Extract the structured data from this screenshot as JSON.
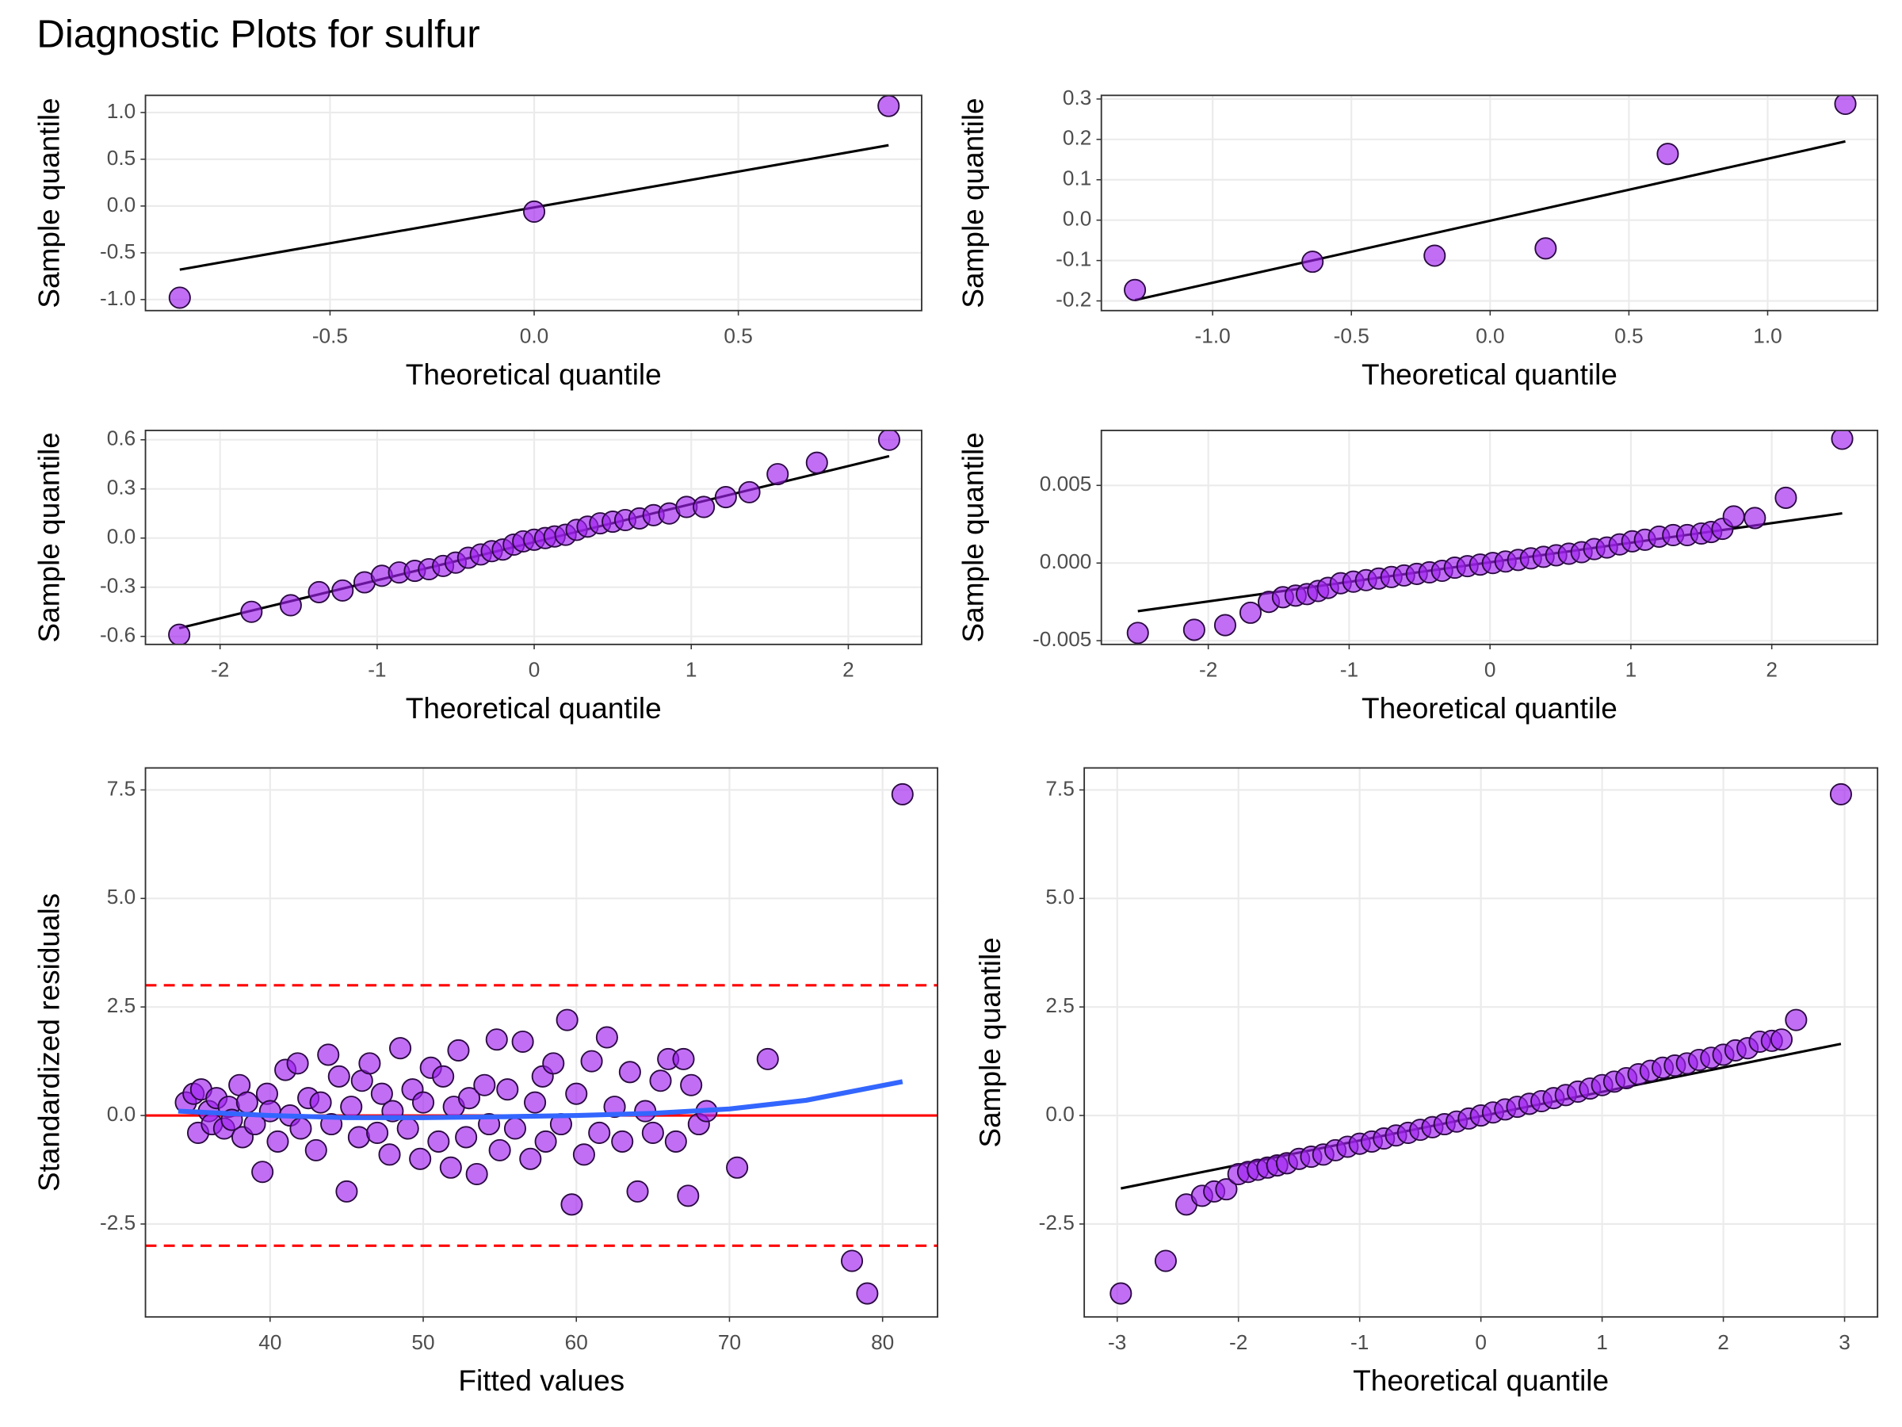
{
  "title": "Diagnostic Plots for sulfur",
  "chart_data": [
    {
      "type": "scatter",
      "x_label": "Theoretical quantile",
      "y_label": "Sample quantile",
      "xlim": [
        -0.952,
        0.949
      ],
      "ylim": [
        -1.118,
        1.183
      ],
      "xticks": [
        -0.5,
        {
          "value": 0,
          "label": "0.0"
        },
        0.5
      ],
      "yticks": [
        {
          "value": -1,
          "label": "-1.0"
        },
        -0.5,
        {
          "value": 0,
          "label": "0.0"
        },
        0.5,
        {
          "value": 1,
          "label": "1.0"
        }
      ],
      "grid": true,
      "color": "#a020f0",
      "x": [
        -0.868,
        0,
        0.868
      ],
      "y": [
        -0.98,
        -0.06,
        1.07
      ],
      "line": {
        "color": "#000000",
        "x": [
          -0.868,
          0.868
        ],
        "y": [
          -0.68,
          0.65
        ]
      }
    },
    {
      "type": "scatter",
      "x_label": "Theoretical quantile",
      "y_label": "Sample quantile",
      "xlim": [
        -1.401,
        1.396
      ],
      "ylim": [
        -0.224,
        0.309
      ],
      "xticks": [
        {
          "value": -1,
          "label": "-1.0"
        },
        -0.5,
        {
          "value": 0,
          "label": "0.0"
        },
        0.5,
        {
          "value": 1,
          "label": "1.0"
        }
      ],
      "yticks": [
        -0.2,
        -0.1,
        {
          "value": 0,
          "label": "0.0"
        },
        0.1,
        0.2,
        0.3
      ],
      "grid": true,
      "color": "#a020f0",
      "x": [
        -1.28,
        -0.64,
        -0.2,
        0.2,
        0.64,
        1.28
      ],
      "y": [
        -0.173,
        -0.103,
        -0.088,
        -0.07,
        0.164,
        0.288
      ],
      "line": {
        "color": "#000000",
        "x": [
          -1.28,
          1.28
        ],
        "y": [
          -0.198,
          0.195
        ]
      }
    },
    {
      "type": "scatter",
      "x_label": "Theoretical quantile",
      "y_label": "Sample quantile",
      "xlim": [
        -2.475,
        2.467
      ],
      "ylim": [
        -0.649,
        0.657
      ],
      "xticks": [
        -2,
        -1,
        0,
        1,
        2
      ],
      "yticks": [
        -0.6,
        -0.3,
        {
          "value": 0,
          "label": "0.0"
        },
        0.3,
        0.6
      ],
      "grid": true,
      "color": "#a020f0",
      "x": [
        -2.26,
        -1.8,
        -1.55,
        -1.37,
        -1.22,
        -1.08,
        -0.97,
        -0.86,
        -0.76,
        -0.67,
        -0.58,
        -0.5,
        -0.42,
        -0.34,
        -0.27,
        -0.2,
        -0.13,
        -0.07,
        0,
        0.07,
        0.13,
        0.2,
        0.27,
        0.34,
        0.42,
        0.5,
        0.58,
        0.67,
        0.76,
        0.86,
        0.97,
        1.08,
        1.22,
        1.37,
        1.55,
        1.8,
        2.26
      ],
      "y": [
        -0.59,
        -0.45,
        -0.41,
        -0.33,
        -0.32,
        -0.27,
        -0.23,
        -0.21,
        -0.2,
        -0.19,
        -0.17,
        -0.15,
        -0.12,
        -0.1,
        -0.08,
        -0.07,
        -0.04,
        -0.02,
        -0.01,
        0,
        0.01,
        0.02,
        0.05,
        0.07,
        0.09,
        0.1,
        0.11,
        0.12,
        0.14,
        0.15,
        0.19,
        0.19,
        0.25,
        0.28,
        0.39,
        0.46,
        0.6
      ],
      "line": {
        "color": "#000000",
        "x": [
          -2.26,
          2.26
        ],
        "y": [
          -0.55,
          0.5
        ]
      }
    },
    {
      "type": "scatter",
      "x_label": "Theoretical quantile",
      "y_label": "Sample quantile",
      "xlim": [
        -2.759,
        2.751
      ],
      "ylim": [
        -0.00524,
        0.00854
      ],
      "xticks": [
        -2,
        -1,
        0,
        1,
        2
      ],
      "yticks": [
        -0.005,
        {
          "value": 0,
          "label": "0.000"
        },
        0.005
      ],
      "grid": true,
      "color": "#a020f0",
      "x": [
        -2.5,
        -2.1,
        -1.88,
        -1.7,
        -1.57,
        -1.47,
        -1.38,
        -1.3,
        -1.22,
        -1.15,
        -1.06,
        -0.97,
        -0.88,
        -0.79,
        -0.7,
        -0.61,
        -0.52,
        -0.43,
        -0.34,
        -0.25,
        -0.16,
        -0.07,
        0.02,
        0.11,
        0.2,
        0.29,
        0.38,
        0.47,
        0.56,
        0.65,
        0.74,
        0.83,
        0.92,
        1.01,
        1.1,
        1.2,
        1.3,
        1.4,
        1.5,
        1.57,
        1.65,
        1.73,
        1.88,
        2.1,
        2.5
      ],
      "y": [
        -0.0045,
        -0.0043,
        -0.004,
        -0.0032,
        -0.0025,
        -0.0022,
        -0.0021,
        -0.002,
        -0.0018,
        -0.0016,
        -0.0013,
        -0.0012,
        -0.0011,
        -0.001,
        -0.0009,
        -0.0008,
        -0.0007,
        -0.0006,
        -0.0005,
        -0.0003,
        -0.0002,
        -0.0001,
        0,
        0.0001,
        0.0002,
        0.0003,
        0.0004,
        0.0005,
        0.0006,
        0.0007,
        0.0009,
        0.001,
        0.0012,
        0.0014,
        0.0015,
        0.0017,
        0.0018,
        0.0018,
        0.0019,
        0.002,
        0.0022,
        0.003,
        0.0029,
        0.0042,
        0.008
      ],
      "line": {
        "color": "#000000",
        "x": [
          -2.5,
          2.5
        ],
        "y": [
          -0.0031,
          0.0032
        ]
      }
    },
    {
      "type": "scatter",
      "x_label": "Fitted values",
      "y_label": "Standardized residuals",
      "xlim": [
        31.86,
        83.59
      ],
      "ylim": [
        -4.641,
        8.007
      ],
      "xticks": [
        40,
        50,
        60,
        70,
        80
      ],
      "yticks": [
        -2.5,
        {
          "value": 0,
          "label": "0.0"
        },
        2.5,
        {
          "value": 5,
          "label": "5.0"
        },
        7.5
      ],
      "grid": true,
      "color": "#a020f0",
      "x": [
        34.5,
        35,
        35.3,
        35.5,
        36,
        36.2,
        36.5,
        37,
        37.3,
        37.5,
        38,
        38.2,
        38.5,
        39,
        39.5,
        39.8,
        40,
        40.5,
        41,
        41.3,
        41.8,
        42,
        42.5,
        43,
        43.3,
        43.8,
        44,
        44.5,
        45,
        45.3,
        45.8,
        46,
        46.5,
        47,
        47.3,
        47.8,
        48,
        48.5,
        49,
        49.3,
        49.8,
        50,
        50.5,
        51,
        51.3,
        51.8,
        52,
        52.3,
        52.8,
        53,
        53.5,
        54,
        54.3,
        54.8,
        55,
        55.5,
        56,
        56.5,
        57,
        57.3,
        57.8,
        58,
        58.5,
        59,
        59.4,
        59.7,
        60,
        60.5,
        61,
        61.5,
        62,
        62.5,
        63,
        63.5,
        64,
        64.5,
        65,
        65.5,
        66,
        66.5,
        67,
        67.3,
        67.5,
        68,
        68.5,
        70.5,
        72.5,
        78,
        79,
        81.3
      ],
      "y": [
        0.3,
        0.5,
        -0.4,
        0.6,
        0.1,
        -0.2,
        0.4,
        -0.3,
        0.2,
        -0.1,
        0.7,
        -0.5,
        0.3,
        -0.2,
        -1.3,
        0.5,
        0.1,
        -0.6,
        1.05,
        0,
        1.2,
        -0.3,
        0.4,
        -0.8,
        0.3,
        1.4,
        -0.2,
        0.9,
        -1.75,
        0.2,
        -0.5,
        0.8,
        1.2,
        -0.4,
        0.5,
        -0.9,
        0.1,
        1.55,
        -0.3,
        0.6,
        -1,
        0.3,
        1.1,
        -0.6,
        0.9,
        -1.2,
        0.2,
        1.5,
        -0.5,
        0.4,
        -1.35,
        0.7,
        -0.2,
        1.75,
        -0.8,
        0.6,
        -0.3,
        1.7,
        -1,
        0.3,
        0.9,
        -0.6,
        1.2,
        -0.2,
        2.2,
        -2.05,
        0.5,
        -0.9,
        1.25,
        -0.4,
        1.8,
        0.2,
        -0.6,
        1,
        -1.75,
        0.1,
        -0.4,
        0.8,
        1.3,
        -0.6,
        1.3,
        -1.85,
        0.7,
        -0.2,
        0.1,
        -1.2,
        1.3,
        -3.35,
        -4.1,
        7.4
      ],
      "hlines": [
        {
          "y": 0,
          "color": "#ff0000",
          "dash": false
        },
        {
          "y": 3,
          "color": "#ff0000",
          "dash": true
        },
        {
          "y": -3,
          "color": "#ff0000",
          "dash": true
        }
      ],
      "smooth": {
        "color": "#3366ff",
        "x": [
          34,
          40,
          45,
          50,
          55,
          60,
          65,
          70,
          75,
          81.3
        ],
        "y": [
          0.1,
          0,
          -0.05,
          -0.05,
          -0.03,
          0,
          0.05,
          0.15,
          0.35,
          0.78
        ]
      }
    },
    {
      "type": "scatter",
      "x_label": "Theoretical quantile",
      "y_label": "Sample quantile",
      "xlim": [
        -3.272,
        3.272
      ],
      "ylim": [
        -4.641,
        8.007
      ],
      "xticks": [
        -3,
        -2,
        -1,
        0,
        1,
        2,
        3
      ],
      "yticks": [
        -2.5,
        {
          "value": 0,
          "label": "0.0"
        },
        2.5,
        {
          "value": 5,
          "label": "5.0"
        },
        7.5
      ],
      "grid": true,
      "color": "#a020f0",
      "x": [
        -2.97,
        -2.6,
        -2.43,
        -2.3,
        -2.2,
        -2.1,
        -2,
        -1.92,
        -1.84,
        -1.76,
        -1.68,
        -1.6,
        -1.5,
        -1.4,
        -1.3,
        -1.2,
        -1.1,
        -1,
        -0.9,
        -0.8,
        -0.7,
        -0.6,
        -0.5,
        -0.4,
        -0.3,
        -0.2,
        -0.1,
        0,
        0.1,
        0.2,
        0.3,
        0.4,
        0.5,
        0.6,
        0.7,
        0.8,
        0.9,
        1,
        1.1,
        1.2,
        1.3,
        1.4,
        1.5,
        1.6,
        1.7,
        1.8,
        1.9,
        2,
        2.1,
        2.2,
        2.3,
        2.4,
        2.48,
        2.6,
        2.97
      ],
      "y": [
        -4.1,
        -3.35,
        -2.05,
        -1.85,
        -1.75,
        -1.7,
        -1.35,
        -1.3,
        -1.25,
        -1.2,
        -1.15,
        -1.1,
        -1,
        -0.95,
        -0.9,
        -0.8,
        -0.72,
        -0.65,
        -0.6,
        -0.53,
        -0.46,
        -0.4,
        -0.33,
        -0.27,
        -0.2,
        -0.14,
        -0.07,
        0,
        0.07,
        0.14,
        0.2,
        0.27,
        0.33,
        0.4,
        0.47,
        0.55,
        0.62,
        0.7,
        0.78,
        0.86,
        0.95,
        1.03,
        1.1,
        1.15,
        1.2,
        1.28,
        1.33,
        1.4,
        1.5,
        1.55,
        1.7,
        1.72,
        1.75,
        2.2,
        7.4
      ],
      "line": {
        "color": "#000000",
        "x": [
          -2.97,
          2.97
        ],
        "y": [
          -1.68,
          1.65
        ]
      }
    }
  ]
}
